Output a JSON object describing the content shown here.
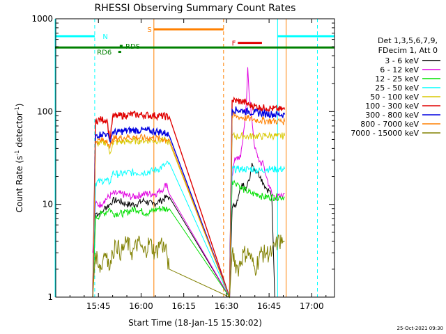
{
  "chart_data": {
    "type": "line",
    "title": "RHESSI Observing Summary Count Rates",
    "xlabel": "Start Time (18-Jan-15 15:30:02)",
    "ylabel_main": "Count Rate (s",
    "ylabel_sup1": "-1",
    "ylabel_mid": " detector",
    "ylabel_sup2": "-1",
    "ylabel_end": ")",
    "yscale": "log",
    "ylim": [
      1,
      1000
    ],
    "xlim_minutes": [
      0,
      98
    ],
    "x_ticks": [
      {
        "t": 15,
        "label": "15:45"
      },
      {
        "t": 30,
        "label": "16:00"
      },
      {
        "t": 45,
        "label": "16:15"
      },
      {
        "t": 60,
        "label": "16:30"
      },
      {
        "t": 75,
        "label": "16:45"
      },
      {
        "t": 90,
        "label": "17:00"
      }
    ],
    "y_ticks": [
      {
        "v": 1,
        "label": "1"
      },
      {
        "v": 10,
        "label": "10"
      },
      {
        "v": 100,
        "label": "100"
      },
      {
        "v": 1000,
        "label": "1000"
      }
    ],
    "legend_header": [
      "Det 1,3,5,6,7,9,",
      "FDecim 1, Att 0"
    ],
    "series": [
      {
        "name": "3 - 6 keV",
        "color": "#000000",
        "points": [
          [
            13,
            1
          ],
          [
            14,
            8
          ],
          [
            16,
            8
          ],
          [
            17,
            9
          ],
          [
            19,
            10
          ],
          [
            20,
            11
          ],
          [
            22,
            11
          ],
          [
            25,
            10
          ],
          [
            28,
            10
          ],
          [
            31,
            11
          ],
          [
            34,
            10
          ],
          [
            37,
            11
          ],
          [
            39,
            12
          ],
          [
            39.9,
            12
          ],
          [
            61.1,
            1
          ],
          [
            62,
            9
          ],
          [
            63,
            10
          ],
          [
            64,
            11
          ],
          [
            65,
            15
          ],
          [
            66,
            17
          ],
          [
            67,
            15
          ],
          [
            68,
            18
          ],
          [
            69,
            28
          ],
          [
            70,
            24
          ],
          [
            71,
            22
          ],
          [
            72,
            20
          ],
          [
            73,
            17
          ],
          [
            74,
            15
          ],
          [
            75,
            14
          ],
          [
            75.4,
            14
          ],
          [
            76,
            11
          ],
          [
            77,
            1
          ]
        ]
      },
      {
        "name": "6 - 12 keV",
        "color": "#e000e0",
        "points": [
          [
            13,
            3
          ],
          [
            14,
            10
          ],
          [
            16,
            10
          ],
          [
            17,
            11
          ],
          [
            20,
            13
          ],
          [
            23,
            13
          ],
          [
            27,
            12
          ],
          [
            31,
            13
          ],
          [
            35,
            13
          ],
          [
            38,
            15
          ],
          [
            39,
            17
          ],
          [
            39.9,
            13
          ],
          [
            61.1,
            1
          ],
          [
            62,
            20
          ],
          [
            63,
            32
          ],
          [
            64,
            30
          ],
          [
            65,
            32
          ],
          [
            66,
            60
          ],
          [
            67,
            120
          ],
          [
            67.5,
            300
          ],
          [
            68,
            150
          ],
          [
            69,
            80
          ],
          [
            70,
            40
          ],
          [
            71,
            32
          ],
          [
            72,
            28
          ],
          [
            73,
            27
          ],
          [
            74,
            20
          ],
          [
            75,
            16
          ],
          [
            76,
            13
          ],
          [
            77,
            12
          ],
          [
            79,
            12
          ],
          [
            80,
            13
          ],
          [
            80.5,
            13
          ]
        ]
      },
      {
        "name": "12 - 25 keV",
        "color": "#00e000",
        "points": [
          [
            13,
            1
          ],
          [
            14,
            7
          ],
          [
            16,
            8
          ],
          [
            17,
            8
          ],
          [
            19,
            9
          ],
          [
            20,
            8
          ],
          [
            24,
            8
          ],
          [
            28,
            9
          ],
          [
            32,
            8
          ],
          [
            36,
            9
          ],
          [
            39.9,
            9
          ],
          [
            61.1,
            1
          ],
          [
            62,
            18
          ],
          [
            63,
            17
          ],
          [
            64,
            17
          ],
          [
            65,
            15
          ],
          [
            67,
            14
          ],
          [
            69,
            13
          ],
          [
            71,
            13
          ],
          [
            73,
            12
          ],
          [
            75,
            12
          ],
          [
            77,
            12
          ],
          [
            79,
            12
          ],
          [
            80.5,
            12
          ]
        ]
      },
      {
        "name": "25 - 50 keV",
        "color": "#00ffff",
        "points": [
          [
            13,
            1
          ],
          [
            14,
            17
          ],
          [
            16,
            18
          ],
          [
            18,
            18
          ],
          [
            19,
            17
          ],
          [
            20,
            22
          ],
          [
            22,
            21
          ],
          [
            25,
            22
          ],
          [
            28,
            22
          ],
          [
            31,
            22
          ],
          [
            34,
            23
          ],
          [
            36,
            24
          ],
          [
            38,
            26
          ],
          [
            39.9,
            28
          ],
          [
            61.1,
            1
          ],
          [
            62,
            24
          ],
          [
            64,
            24
          ],
          [
            66,
            24
          ],
          [
            68,
            24
          ],
          [
            70,
            24
          ],
          [
            72,
            23
          ],
          [
            74,
            24
          ],
          [
            76,
            24
          ],
          [
            78,
            24
          ],
          [
            80.5,
            24
          ]
        ]
      },
      {
        "name": "50 - 100 keV",
        "color": "#d8c800",
        "points": [
          [
            13,
            1
          ],
          [
            14,
            45
          ],
          [
            16,
            46
          ],
          [
            18,
            47
          ],
          [
            19,
            35
          ],
          [
            20,
            46
          ],
          [
            22,
            47
          ],
          [
            26,
            48
          ],
          [
            30,
            49
          ],
          [
            34,
            49
          ],
          [
            38,
            49
          ],
          [
            39.9,
            47
          ],
          [
            61.1,
            1
          ],
          [
            62,
            55
          ],
          [
            64,
            54
          ],
          [
            66,
            55
          ],
          [
            68,
            54
          ],
          [
            70,
            55
          ],
          [
            72,
            54
          ],
          [
            74,
            55
          ],
          [
            76,
            55
          ],
          [
            78,
            54
          ],
          [
            80.5,
            55
          ]
        ]
      },
      {
        "name": "100 - 300 keV",
        "color": "#e00000",
        "points": [
          [
            13,
            1
          ],
          [
            14,
            80
          ],
          [
            16,
            82
          ],
          [
            18,
            82
          ],
          [
            19,
            50
          ],
          [
            20,
            88
          ],
          [
            22,
            90
          ],
          [
            25,
            92
          ],
          [
            28,
            93
          ],
          [
            31,
            92
          ],
          [
            34,
            91
          ],
          [
            37,
            90
          ],
          [
            39.9,
            88
          ],
          [
            61.1,
            1
          ],
          [
            62,
            132
          ],
          [
            64,
            130
          ],
          [
            66,
            128
          ],
          [
            68,
            118
          ],
          [
            70,
            115
          ],
          [
            72,
            110
          ],
          [
            74,
            110
          ],
          [
            76,
            108
          ],
          [
            78,
            106
          ],
          [
            80.5,
            105
          ]
        ]
      },
      {
        "name": "300 - 800 keV",
        "color": "#0000e0",
        "points": [
          [
            13,
            1
          ],
          [
            14,
            56
          ],
          [
            16,
            57
          ],
          [
            18,
            58
          ],
          [
            19,
            48
          ],
          [
            20,
            60
          ],
          [
            22,
            60
          ],
          [
            24,
            62
          ],
          [
            27,
            63
          ],
          [
            30,
            63
          ],
          [
            33,
            62
          ],
          [
            36,
            61
          ],
          [
            39,
            58
          ],
          [
            39.9,
            55
          ],
          [
            61.1,
            1
          ],
          [
            62,
            105
          ],
          [
            64,
            104
          ],
          [
            66,
            102
          ],
          [
            68,
            100
          ],
          [
            70,
            98
          ],
          [
            72,
            96
          ],
          [
            74,
            95
          ],
          [
            76,
            94
          ],
          [
            78,
            93
          ],
          [
            80.5,
            93
          ]
        ]
      },
      {
        "name": "800 - 7000 keV",
        "color": "#ff8000",
        "points": [
          [
            13,
            1
          ],
          [
            14,
            48
          ],
          [
            16,
            49
          ],
          [
            18,
            50
          ],
          [
            19,
            40
          ],
          [
            20,
            51
          ],
          [
            22,
            52
          ],
          [
            25,
            53
          ],
          [
            28,
            53
          ],
          [
            31,
            52
          ],
          [
            34,
            52
          ],
          [
            37,
            51
          ],
          [
            39.9,
            50
          ],
          [
            61.1,
            1
          ],
          [
            62,
            90
          ],
          [
            64,
            88
          ],
          [
            66,
            86
          ],
          [
            68,
            84
          ],
          [
            70,
            82
          ],
          [
            72,
            80
          ],
          [
            74,
            80
          ],
          [
            76,
            79
          ],
          [
            78,
            79
          ],
          [
            80.5,
            78
          ]
        ]
      },
      {
        "name": "7000 - 15000 keV",
        "color": "#808000",
        "points": [
          [
            13,
            1
          ],
          [
            13.6,
            2
          ],
          [
            14,
            3
          ],
          [
            16,
            2
          ],
          [
            17,
            3
          ],
          [
            18,
            3
          ],
          [
            19,
            2
          ],
          [
            20,
            3
          ],
          [
            21,
            4
          ],
          [
            23,
            3
          ],
          [
            25,
            4
          ],
          [
            27,
            3
          ],
          [
            29,
            4
          ],
          [
            31,
            3
          ],
          [
            33,
            4
          ],
          [
            35,
            3
          ],
          [
            37,
            4
          ],
          [
            39,
            3
          ],
          [
            39.9,
            2
          ],
          [
            61.1,
            1
          ],
          [
            62,
            3
          ],
          [
            64,
            2
          ],
          [
            66,
            3
          ],
          [
            68,
            3
          ],
          [
            70,
            2
          ],
          [
            72,
            3
          ],
          [
            74,
            3
          ],
          [
            76,
            3
          ],
          [
            78,
            4
          ],
          [
            80,
            4
          ],
          [
            80.5,
            4
          ]
        ]
      }
    ],
    "intervals": [
      {
        "label": "N",
        "kind": "night",
        "color": "#00ffff",
        "value": 650,
        "segments": [
          [
            -2.5,
            13.7
          ],
          [
            78,
            98
          ]
        ],
        "label_t": 16.5
      },
      {
        "label": "S",
        "kind": "saa",
        "color": "#ff8000",
        "value": 770,
        "segments": [
          [
            34.5,
            59
          ]
        ],
        "label_t": 32.2
      },
      {
        "label": "F",
        "kind": "flare",
        "color": "#e00000",
        "value": 550,
        "segments": [
          [
            64,
            72.5
          ]
        ],
        "label_t": 61.9
      },
      {
        "label": "RD6",
        "kind": "decimation",
        "color": "#008000",
        "value": 440,
        "segments": [
          [
            22,
            23
          ]
        ],
        "label_t": 14.5
      },
      {
        "label": "RDS",
        "kind": "decimation",
        "color": "#008000",
        "value": 510,
        "segments": [
          [
            22.5,
            23.5
          ]
        ],
        "label_t": 24.5
      },
      {
        "label": "",
        "kind": "attenuator",
        "color": "#008000",
        "value": 490,
        "segments": [
          [
            -2.5,
            98
          ]
        ],
        "label_t": 0
      }
    ],
    "vlines": [
      {
        "t": -2.5,
        "color": "#00ffff",
        "style": "solid"
      },
      {
        "t": 13.7,
        "color": "#00ffff",
        "style": "dashed"
      },
      {
        "t": 34.5,
        "color": "#ff8000",
        "style": "solid"
      },
      {
        "t": 59,
        "color": "#ff8000",
        "style": "dashed"
      },
      {
        "t": 78,
        "color": "#00ffff",
        "style": "solid"
      },
      {
        "t": 92,
        "color": "#00ffff",
        "style": "dashed"
      },
      {
        "t": 81,
        "color": "#ff8000",
        "style": "solid"
      }
    ]
  },
  "footer_timestamp": "25-Oct-2021 09:30"
}
